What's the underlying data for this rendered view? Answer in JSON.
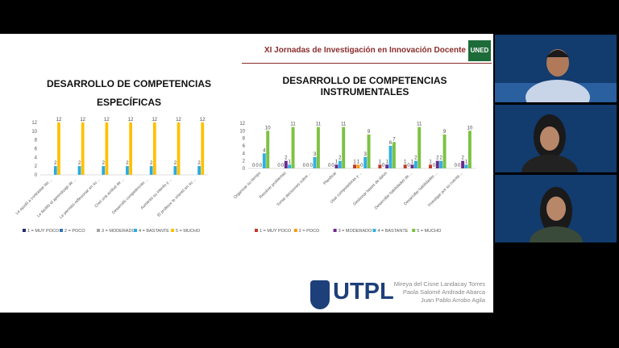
{
  "header": {
    "title": "XI Jornadas de Investigación en Innovación Docente",
    "logo": "UNED"
  },
  "chart_data": [
    {
      "type": "bar",
      "title": "DESARROLLO DE COMPETENCIAS ESPECÍFICAS",
      "categories": [
        "Le ayudó a contrastar las ...",
        "Le facilitó el aprendizaje de ...",
        "Le permitió reflexionar en su ...",
        "Creó una actitud de ...",
        "Desarrolló competencias ...",
        "Aumentó su interés y ...",
        "El profesor le orientó en su ..."
      ],
      "series": [
        {
          "name": "1 = MUY POCO",
          "color": "#1f2d6b",
          "values": [
            0,
            0,
            0,
            0,
            0,
            0,
            0
          ]
        },
        {
          "name": "2 = POCO",
          "color": "#2e75b6",
          "values": [
            0,
            0,
            0,
            0,
            0,
            0,
            0
          ]
        },
        {
          "name": "3 = MODERADO",
          "color": "#a5a5a5",
          "values": [
            0,
            0,
            0,
            0,
            0,
            0,
            0
          ]
        },
        {
          "name": "4 = BASTANTE",
          "color": "#29abe2",
          "values": [
            2,
            2,
            2,
            2,
            2,
            2,
            2
          ]
        },
        {
          "name": "5 = MUCHO",
          "color": "#ffc000",
          "values": [
            12,
            12,
            12,
            12,
            12,
            12,
            12
          ]
        }
      ],
      "ylim": [
        0,
        12
      ],
      "yticks": [
        0,
        2,
        4,
        6,
        8,
        10,
        12
      ],
      "grid": false,
      "zero_labels": false,
      "legend": "bottom"
    },
    {
      "type": "bar",
      "title": "DESARROLLO DE COMPETENCIAS INSTRUMENTALES",
      "categories": [
        "Organizar su tiempo",
        "Resolver problemas",
        "Tomar decisiones sobre ...",
        "Planificar",
        "Usar computadoras y ...",
        "Gestionar bases de datos",
        "Desarrollar habilidades de ...",
        "Desarrollar habilidades ...",
        "Investigar por su cuenta ..."
      ],
      "series": [
        {
          "name": "1 = MUY POCO",
          "color": "#c0392b",
          "values": [
            0,
            0,
            0,
            0,
            1,
            1,
            1,
            1,
            0
          ]
        },
        {
          "name": "2 = POCO",
          "color": "#f39c12",
          "values": [
            0,
            0,
            0,
            0,
            1,
            0,
            0,
            0,
            0
          ]
        },
        {
          "name": "3 = MODERADO",
          "color": "#6a2c8e",
          "values": [
            0,
            2,
            0,
            1,
            0,
            1,
            1,
            2,
            2
          ]
        },
        {
          "name": "4 = BASTANTE",
          "color": "#31b0e0",
          "values": [
            4,
            1,
            3,
            2,
            3,
            6,
            2,
            2,
            1
          ]
        },
        {
          "name": "5 = MUCHO",
          "color": "#7dc242",
          "values": [
            10,
            11,
            11,
            11,
            9,
            7,
            11,
            9,
            10
          ]
        }
      ],
      "ylim": [
        0,
        12
      ],
      "yticks": [
        0,
        2,
        4,
        6,
        8,
        10,
        12
      ],
      "grid": false,
      "zero_labels": true,
      "legend": "bottom"
    }
  ],
  "footer": {
    "logo": "UTPL",
    "authors": [
      "Mireya del Cisne Landacay Torres",
      "Paola Salomé Andrade Abarca",
      "Juan Pablo Arrobo Agila"
    ]
  }
}
